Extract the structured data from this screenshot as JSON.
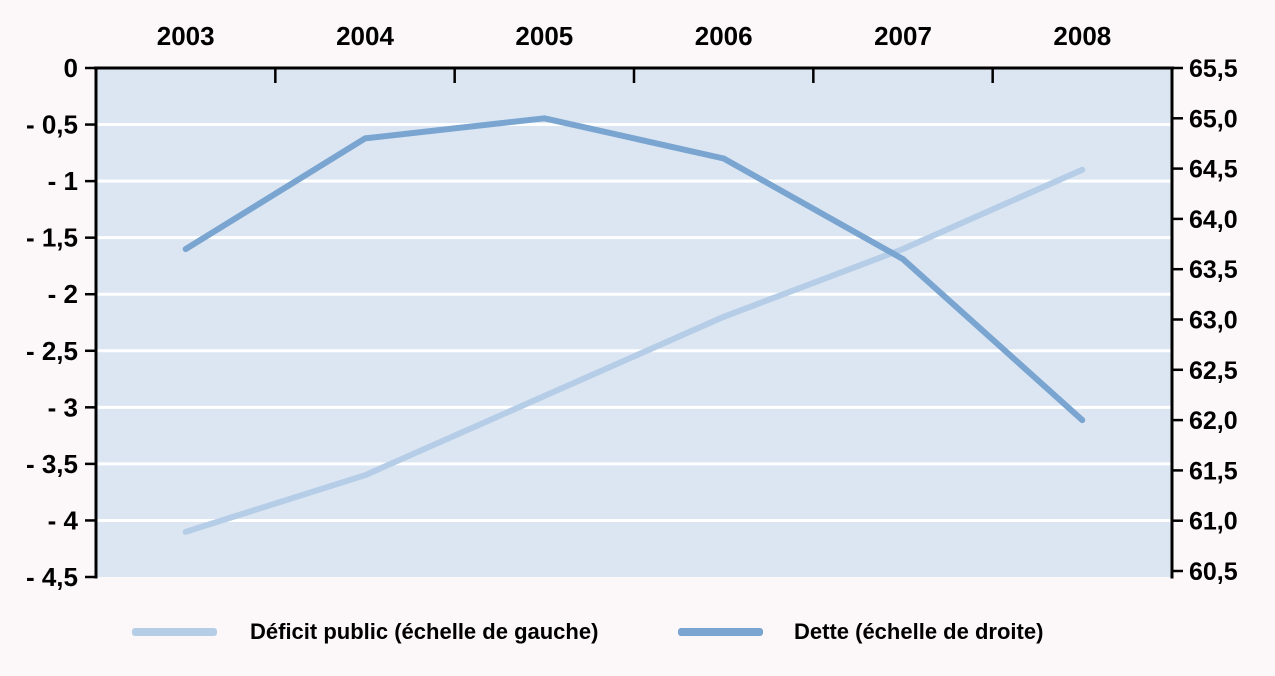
{
  "chart_data": {
    "type": "line",
    "title": "",
    "categories": [
      "2003",
      "2004",
      "2005",
      "2006",
      "2007",
      "2008"
    ],
    "series": [
      {
        "name": "Déficit public (échelle de gauche)",
        "axis": "left",
        "values": [
          -4.1,
          -3.6,
          -2.9,
          -2.2,
          -1.6,
          -0.9
        ],
        "color": "#b5cde7"
      },
      {
        "name": "Dette (échelle de droite)",
        "axis": "right",
        "values": [
          63.7,
          64.8,
          65.0,
          64.6,
          63.6,
          62.0
        ],
        "color": "#7aa5d1"
      }
    ],
    "left_axis": {
      "max": 0,
      "min": -4.5,
      "step": 0.5,
      "tick_labels": [
        "0",
        "- 0,5",
        "- 1",
        "- 1,5",
        "- 2",
        "- 2,5",
        "- 3",
        "- 3,5",
        "- 4",
        "- 4,5"
      ]
    },
    "right_axis": {
      "max": 65.5,
      "min": 60.5,
      "step": 0.5,
      "tick_labels": [
        "65,5",
        "65,0",
        "64,5",
        "64,0",
        "63,5",
        "63,0",
        "62,5",
        "62,0",
        "61,5",
        "61,0",
        "60,5"
      ]
    },
    "x_axis_position": "top",
    "legend_position": "bottom",
    "grid": "horizontal white gridlines at left-axis steps",
    "colors": {
      "page_background": "#fcf7f8",
      "plot_background": "#dce6f2",
      "gridline": "#ffffff",
      "axis": "#000000",
      "label_text": "#000000"
    }
  },
  "legend": {
    "items": [
      {
        "label": "Déficit public (échelle de gauche)"
      },
      {
        "label": "Dette (échelle de droite)"
      }
    ]
  }
}
